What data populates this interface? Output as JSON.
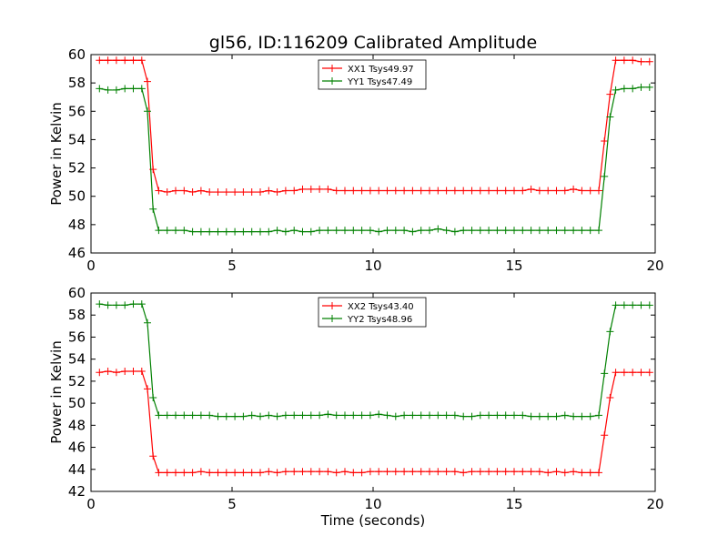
{
  "title": "gl56, ID:116209 Calibrated Amplitude",
  "chart_data": [
    {
      "type": "line",
      "title": "gl56, ID:116209 Calibrated Amplitude",
      "xlabel": "",
      "ylabel": "Power in Kelvin",
      "xlim": [
        0,
        20
      ],
      "ylim": [
        46,
        60
      ],
      "xticks": [
        "0",
        "5",
        "10",
        "15",
        "20"
      ],
      "yticks": [
        "46",
        "48",
        "50",
        "52",
        "54",
        "56",
        "58",
        "60"
      ],
      "grid": false,
      "legend_position": "top-center",
      "x": [
        0.3,
        0.6,
        0.9,
        1.2,
        1.5,
        1.8,
        2.0,
        2.2,
        2.4,
        2.7,
        3.0,
        3.3,
        3.6,
        3.9,
        4.2,
        4.5,
        4.8,
        5.1,
        5.4,
        5.7,
        6.0,
        6.3,
        6.6,
        6.9,
        7.2,
        7.5,
        7.8,
        8.1,
        8.4,
        8.7,
        9.0,
        9.3,
        9.6,
        9.9,
        10.2,
        10.5,
        10.8,
        11.1,
        11.4,
        11.7,
        12.0,
        12.3,
        12.6,
        12.9,
        13.2,
        13.5,
        13.8,
        14.1,
        14.4,
        14.7,
        15.0,
        15.3,
        15.6,
        15.9,
        16.2,
        16.5,
        16.8,
        17.1,
        17.4,
        17.7,
        18.0,
        18.2,
        18.4,
        18.6,
        18.9,
        19.2,
        19.5,
        19.8
      ],
      "series": [
        {
          "name": "XX1 Tsys49.97",
          "color": "#ff0000",
          "values": [
            59.6,
            59.6,
            59.6,
            59.6,
            59.6,
            59.6,
            58.1,
            51.9,
            50.4,
            50.3,
            50.4,
            50.4,
            50.3,
            50.4,
            50.3,
            50.3,
            50.3,
            50.3,
            50.3,
            50.3,
            50.3,
            50.4,
            50.3,
            50.4,
            50.4,
            50.5,
            50.5,
            50.5,
            50.5,
            50.4,
            50.4,
            50.4,
            50.4,
            50.4,
            50.4,
            50.4,
            50.4,
            50.4,
            50.4,
            50.4,
            50.4,
            50.4,
            50.4,
            50.4,
            50.4,
            50.4,
            50.4,
            50.4,
            50.4,
            50.4,
            50.4,
            50.4,
            50.5,
            50.4,
            50.4,
            50.4,
            50.4,
            50.5,
            50.4,
            50.4,
            50.4,
            53.9,
            57.2,
            59.6,
            59.6,
            59.6,
            59.5,
            59.5
          ]
        },
        {
          "name": "YY1 Tsys47.49",
          "color": "#008000",
          "values": [
            57.6,
            57.5,
            57.5,
            57.6,
            57.6,
            57.6,
            56.0,
            49.1,
            47.6,
            47.6,
            47.6,
            47.6,
            47.5,
            47.5,
            47.5,
            47.5,
            47.5,
            47.5,
            47.5,
            47.5,
            47.5,
            47.5,
            47.6,
            47.5,
            47.6,
            47.5,
            47.5,
            47.6,
            47.6,
            47.6,
            47.6,
            47.6,
            47.6,
            47.6,
            47.5,
            47.6,
            47.6,
            47.6,
            47.5,
            47.6,
            47.6,
            47.7,
            47.6,
            47.5,
            47.6,
            47.6,
            47.6,
            47.6,
            47.6,
            47.6,
            47.6,
            47.6,
            47.6,
            47.6,
            47.6,
            47.6,
            47.6,
            47.6,
            47.6,
            47.6,
            47.6,
            51.4,
            55.6,
            57.5,
            57.6,
            57.6,
            57.7,
            57.7
          ]
        }
      ]
    },
    {
      "type": "line",
      "title": "",
      "xlabel": "Time (seconds)",
      "ylabel": "Power in Kelvin",
      "xlim": [
        0,
        20
      ],
      "ylim": [
        42,
        60
      ],
      "xticks": [
        "0",
        "5",
        "10",
        "15",
        "20"
      ],
      "yticks": [
        "42",
        "44",
        "46",
        "48",
        "50",
        "52",
        "54",
        "56",
        "58",
        "60"
      ],
      "grid": false,
      "legend_position": "top-center",
      "x": [
        0.3,
        0.6,
        0.9,
        1.2,
        1.5,
        1.8,
        2.0,
        2.2,
        2.4,
        2.7,
        3.0,
        3.3,
        3.6,
        3.9,
        4.2,
        4.5,
        4.8,
        5.1,
        5.4,
        5.7,
        6.0,
        6.3,
        6.6,
        6.9,
        7.2,
        7.5,
        7.8,
        8.1,
        8.4,
        8.7,
        9.0,
        9.3,
        9.6,
        9.9,
        10.2,
        10.5,
        10.8,
        11.1,
        11.4,
        11.7,
        12.0,
        12.3,
        12.6,
        12.9,
        13.2,
        13.5,
        13.8,
        14.1,
        14.4,
        14.7,
        15.0,
        15.3,
        15.6,
        15.9,
        16.2,
        16.5,
        16.8,
        17.1,
        17.4,
        17.7,
        18.0,
        18.2,
        18.4,
        18.6,
        18.9,
        19.2,
        19.5,
        19.8
      ],
      "series": [
        {
          "name": "XX2 Tsys43.40",
          "color": "#ff0000",
          "values": [
            52.8,
            52.9,
            52.8,
            52.9,
            52.9,
            52.9,
            51.3,
            45.2,
            43.7,
            43.7,
            43.7,
            43.7,
            43.7,
            43.8,
            43.7,
            43.7,
            43.7,
            43.7,
            43.7,
            43.7,
            43.7,
            43.8,
            43.7,
            43.8,
            43.8,
            43.8,
            43.8,
            43.8,
            43.8,
            43.7,
            43.8,
            43.7,
            43.7,
            43.8,
            43.8,
            43.8,
            43.8,
            43.8,
            43.8,
            43.8,
            43.8,
            43.8,
            43.8,
            43.8,
            43.7,
            43.8,
            43.8,
            43.8,
            43.8,
            43.8,
            43.8,
            43.8,
            43.8,
            43.8,
            43.7,
            43.8,
            43.7,
            43.8,
            43.7,
            43.7,
            43.7,
            47.1,
            50.5,
            52.8,
            52.8,
            52.8,
            52.8,
            52.8
          ]
        },
        {
          "name": "YY2 Tsys48.96",
          "color": "#008000",
          "values": [
            59.0,
            58.9,
            58.9,
            58.9,
            59.0,
            59.0,
            57.3,
            50.5,
            48.9,
            48.9,
            48.9,
            48.9,
            48.9,
            48.9,
            48.9,
            48.8,
            48.8,
            48.8,
            48.8,
            48.9,
            48.8,
            48.9,
            48.8,
            48.9,
            48.9,
            48.9,
            48.9,
            48.9,
            49.0,
            48.9,
            48.9,
            48.9,
            48.9,
            48.9,
            49.0,
            48.9,
            48.8,
            48.9,
            48.9,
            48.9,
            48.9,
            48.9,
            48.9,
            48.9,
            48.8,
            48.8,
            48.9,
            48.9,
            48.9,
            48.9,
            48.9,
            48.9,
            48.8,
            48.8,
            48.8,
            48.8,
            48.9,
            48.8,
            48.8,
            48.8,
            48.9,
            52.7,
            56.5,
            58.9,
            58.9,
            58.9,
            58.9,
            58.9
          ]
        }
      ]
    }
  ]
}
